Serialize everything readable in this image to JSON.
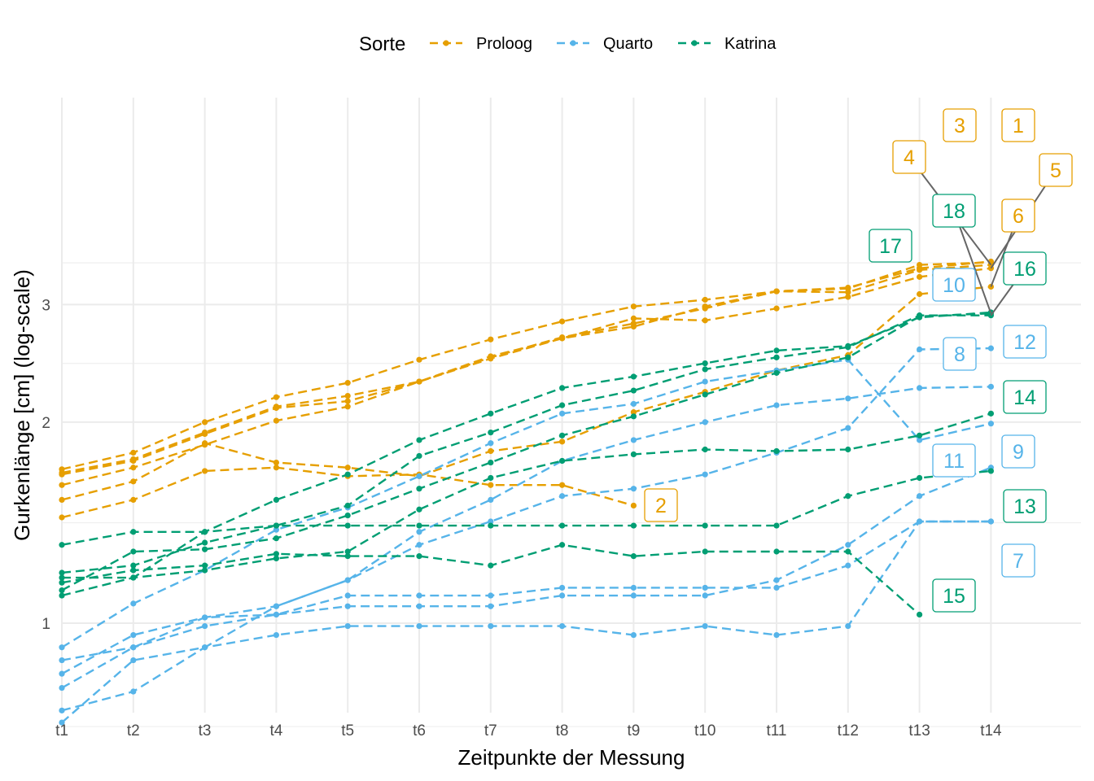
{
  "chart_data": {
    "type": "line",
    "xlabel": "Zeitpunkte der Messung",
    "ylabel": "Gurkenlänge [cm] (log-scale)",
    "y_scale": "log",
    "ylim": [
      0.6,
      3.6
    ],
    "y_ticks": [
      1,
      2,
      3
    ],
    "grid": true,
    "legend": {
      "title": "Sorte",
      "placement": "top"
    },
    "categories": [
      "t1",
      "t2",
      "t3",
      "t4",
      "t5",
      "t6",
      "t7",
      "t8",
      "t9",
      "t10",
      "t11",
      "t12",
      "t13",
      "t14"
    ],
    "groups": [
      {
        "name": "Proloog",
        "color": "#E69F00"
      },
      {
        "name": "Quarto",
        "color": "#56B4E9"
      },
      {
        "name": "Katrina",
        "color": "#009E73"
      }
    ],
    "series": [
      {
        "label": "1",
        "group": "Proloog",
        "values": [
          1.7,
          1.8,
          2.0,
          2.18,
          2.29,
          2.48,
          2.66,
          2.83,
          2.98,
          3.05,
          3.14,
          3.18,
          3.4,
          3.48
        ]
      },
      {
        "label": "2",
        "group": "Proloog",
        "values": [
          1.44,
          1.53,
          1.69,
          1.71,
          1.66,
          1.67,
          1.61,
          1.61,
          1.5,
          null,
          null,
          null,
          null,
          null
        ]
      },
      {
        "label": "3",
        "group": "Proloog",
        "values": [
          1.68,
          1.76,
          1.93,
          2.11,
          2.19,
          2.3,
          2.5,
          2.68,
          2.81,
          2.96,
          3.14,
          3.17,
          3.44,
          3.47
        ]
      },
      {
        "label": "4",
        "group": "Proloog",
        "values": [
          1.67,
          1.75,
          1.92,
          2.1,
          2.15,
          2.3,
          2.51,
          2.67,
          2.78,
          2.98,
          3.14,
          3.13,
          3.38,
          3.44
        ]
      },
      {
        "label": "5",
        "group": "Proloog",
        "values": [
          1.61,
          1.71,
          1.85,
          2.01,
          2.11,
          2.3,
          2.49,
          2.67,
          2.86,
          2.84,
          2.96,
          3.08,
          3.3,
          3.4
        ]
      },
      {
        "label": "6",
        "group": "Proloog",
        "values": [
          1.53,
          1.63,
          1.86,
          1.74,
          1.71,
          1.66,
          1.81,
          1.87,
          2.07,
          2.22,
          2.39,
          2.52,
          3.11,
          3.19
        ]
      },
      {
        "label": "7",
        "group": "Quarto",
        "values": [
          0.74,
          0.79,
          0.92,
          0.96,
          0.99,
          0.99,
          0.99,
          0.99,
          0.96,
          0.99,
          0.96,
          0.99,
          1.42,
          1.42
        ]
      },
      {
        "label": "8",
        "group": "Quarto",
        "values": [
          0.84,
          0.96,
          1.02,
          1.06,
          1.16,
          1.37,
          1.53,
          1.75,
          1.88,
          2.0,
          2.12,
          2.17,
          2.25,
          2.26
        ]
      },
      {
        "label": "9",
        "group": "Quarto",
        "values": [
          0.88,
          0.92,
          0.99,
          1.03,
          1.06,
          1.06,
          1.06,
          1.1,
          1.1,
          1.1,
          1.16,
          1.31,
          1.55,
          1.71
        ]
      },
      {
        "label": "10",
        "group": "Quarto",
        "values": [
          0.71,
          0.88,
          0.92,
          1.06,
          1.16,
          1.31,
          1.42,
          1.55,
          1.59,
          1.67,
          1.8,
          1.96,
          2.57,
          2.58
        ]
      },
      {
        "label": "11",
        "group": "Quarto",
        "values": [
          0.8,
          0.92,
          1.02,
          1.03,
          1.1,
          1.1,
          1.1,
          1.13,
          1.13,
          1.13,
          1.13,
          1.22,
          1.42,
          1.42
        ]
      },
      {
        "label": "12",
        "group": "Quarto",
        "values": [
          0.92,
          1.07,
          1.2,
          1.38,
          1.49,
          1.66,
          1.86,
          2.06,
          2.13,
          2.3,
          2.39,
          2.48,
          1.88,
          1.99
        ]
      },
      {
        "label": "13",
        "group": "Katrina",
        "values": [
          1.1,
          1.17,
          1.2,
          1.25,
          1.28,
          1.48,
          1.65,
          1.75,
          1.79,
          1.82,
          1.81,
          1.82,
          1.91,
          2.06
        ]
      },
      {
        "label": "14",
        "group": "Katrina",
        "values": [
          1.17,
          1.17,
          1.37,
          1.53,
          1.67,
          1.88,
          2.06,
          2.25,
          2.34,
          2.45,
          2.56,
          2.6,
          2.87,
          2.92
        ]
      },
      {
        "label": "15",
        "group": "Katrina",
        "values": [
          1.31,
          1.37,
          1.37,
          1.4,
          1.4,
          1.4,
          1.4,
          1.4,
          1.4,
          1.4,
          1.4,
          1.55,
          1.65,
          1.69
        ]
      },
      {
        "label": "16",
        "group": "Katrina",
        "values": [
          1.19,
          1.22,
          1.32,
          1.4,
          1.5,
          1.78,
          1.93,
          2.12,
          2.23,
          2.4,
          2.5,
          2.59,
          2.89,
          2.89
        ]
      },
      {
        "label": "17",
        "group": "Katrina",
        "values": [
          1.15,
          1.2,
          1.22,
          1.27,
          1.26,
          1.26,
          1.22,
          1.31,
          1.26,
          1.28,
          1.28,
          1.28,
          1.03,
          null
        ]
      },
      {
        "label": "18",
        "group": "Katrina",
        "values": [
          1.12,
          1.28,
          1.29,
          1.34,
          1.45,
          1.59,
          1.74,
          1.91,
          2.04,
          2.2,
          2.37,
          2.5,
          2.88,
          2.91
        ]
      }
    ],
    "end_labels": [
      "1",
      "2",
      "3",
      "4",
      "5",
      "6",
      "7",
      "8",
      "9",
      "10",
      "11",
      "12",
      "13",
      "14",
      "15",
      "16",
      "17",
      "18"
    ]
  }
}
